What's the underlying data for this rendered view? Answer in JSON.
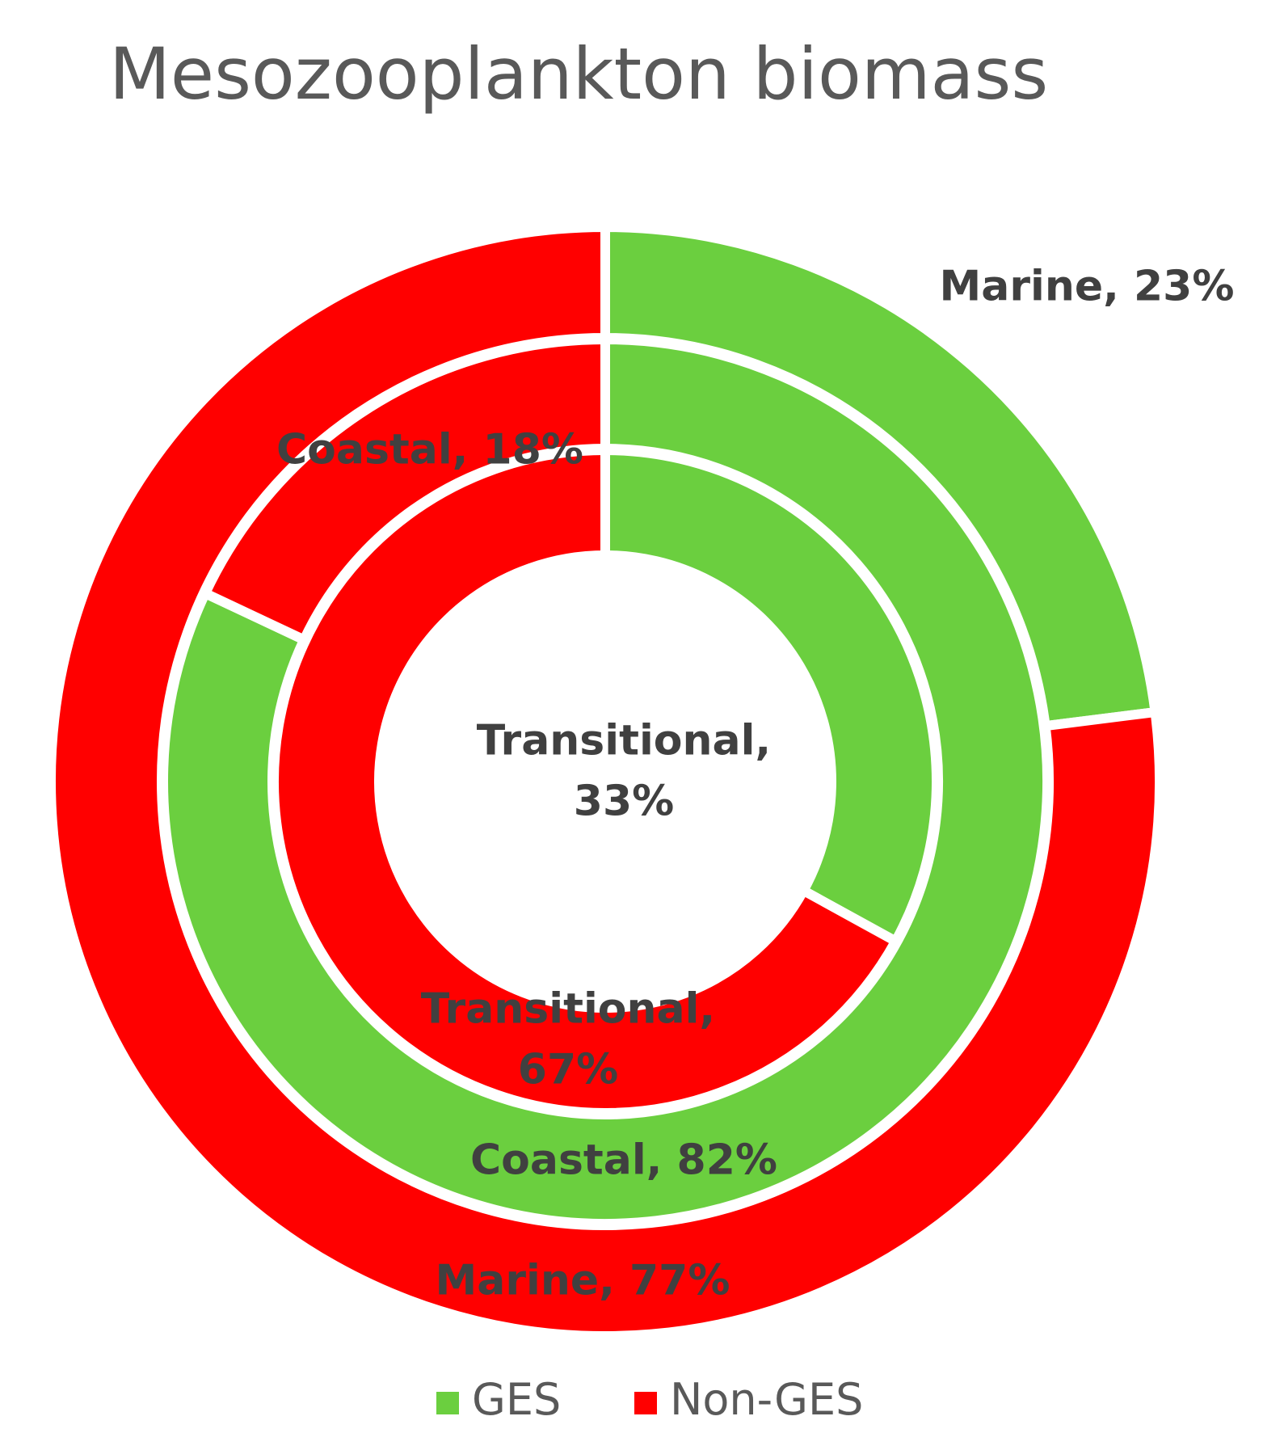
{
  "chart_data": {
    "type": "donut",
    "title": "Mesozooplankton biomass",
    "categories": [
      "GES",
      "Non-GES"
    ],
    "colors": [
      "#6bcf3f",
      "#ff0000"
    ],
    "series": [
      {
        "name": "Marine",
        "values": [
          23,
          77
        ],
        "value_labels": [
          "Marine, 23%",
          "Marine, 77%"
        ]
      },
      {
        "name": "Coastal",
        "values": [
          82,
          18
        ],
        "value_labels": [
          "Coastal, 82%",
          "Coastal, 18%"
        ]
      },
      {
        "name": "Transitional",
        "values": [
          33,
          67
        ],
        "value_labels": [
          "Transitional, 33%",
          "Transitional, 67%"
        ]
      }
    ]
  }
}
